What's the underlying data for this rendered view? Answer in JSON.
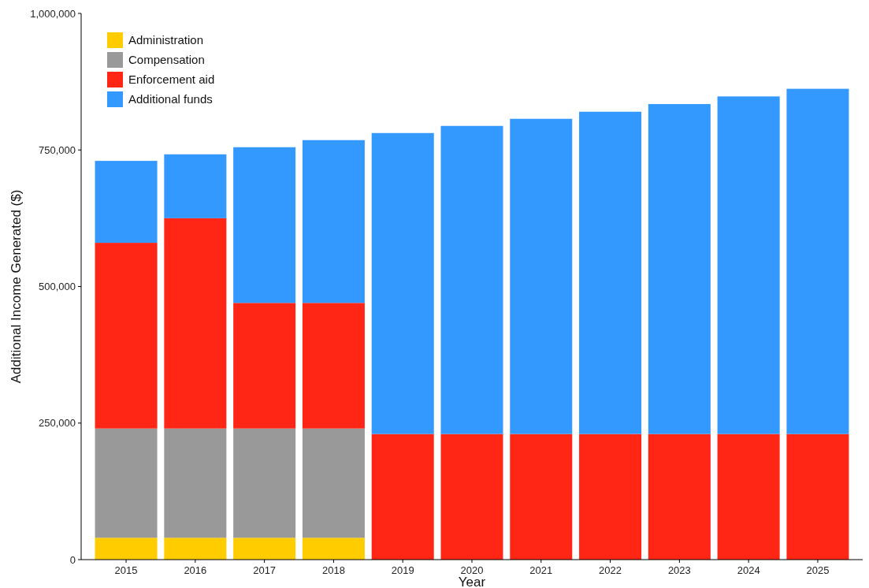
{
  "chart_data": {
    "type": "bar",
    "stacked": true,
    "xlabel": "Year",
    "ylabel": "Additional Income Generated ($)",
    "categories": [
      "2015",
      "2016",
      "2017",
      "2018",
      "2019",
      "2020",
      "2021",
      "2022",
      "2023",
      "2024",
      "2025"
    ],
    "series": [
      {
        "name": "Administration",
        "color": "#ffcc00",
        "values": [
          40000,
          40000,
          40000,
          40000,
          0,
          0,
          0,
          0,
          0,
          0,
          0
        ]
      },
      {
        "name": "Compensation",
        "color": "#999999",
        "values": [
          200000,
          200000,
          200000,
          200000,
          0,
          0,
          0,
          0,
          0,
          0,
          0
        ]
      },
      {
        "name": "Enforcement aid",
        "color": "#ff2616",
        "values": [
          340000,
          385000,
          230000,
          230000,
          230000,
          230000,
          230000,
          230000,
          230000,
          230000,
          230000
        ]
      },
      {
        "name": "Additional funds",
        "color": "#3399ff",
        "values": [
          150000,
          117000,
          285000,
          298000,
          551000,
          564000,
          577000,
          590000,
          604000,
          618000,
          632000
        ]
      }
    ],
    "ylim": [
      0,
      1000000
    ],
    "yticks": [
      0,
      {
        "value": 250000,
        "label": "250,000"
      },
      {
        "value": 500000,
        "label": "500,000"
      },
      {
        "value": 750000,
        "label": "750,000"
      },
      {
        "value": 1000000,
        "label": "1,000,000"
      }
    ],
    "grid": false,
    "legend": "top left"
  }
}
